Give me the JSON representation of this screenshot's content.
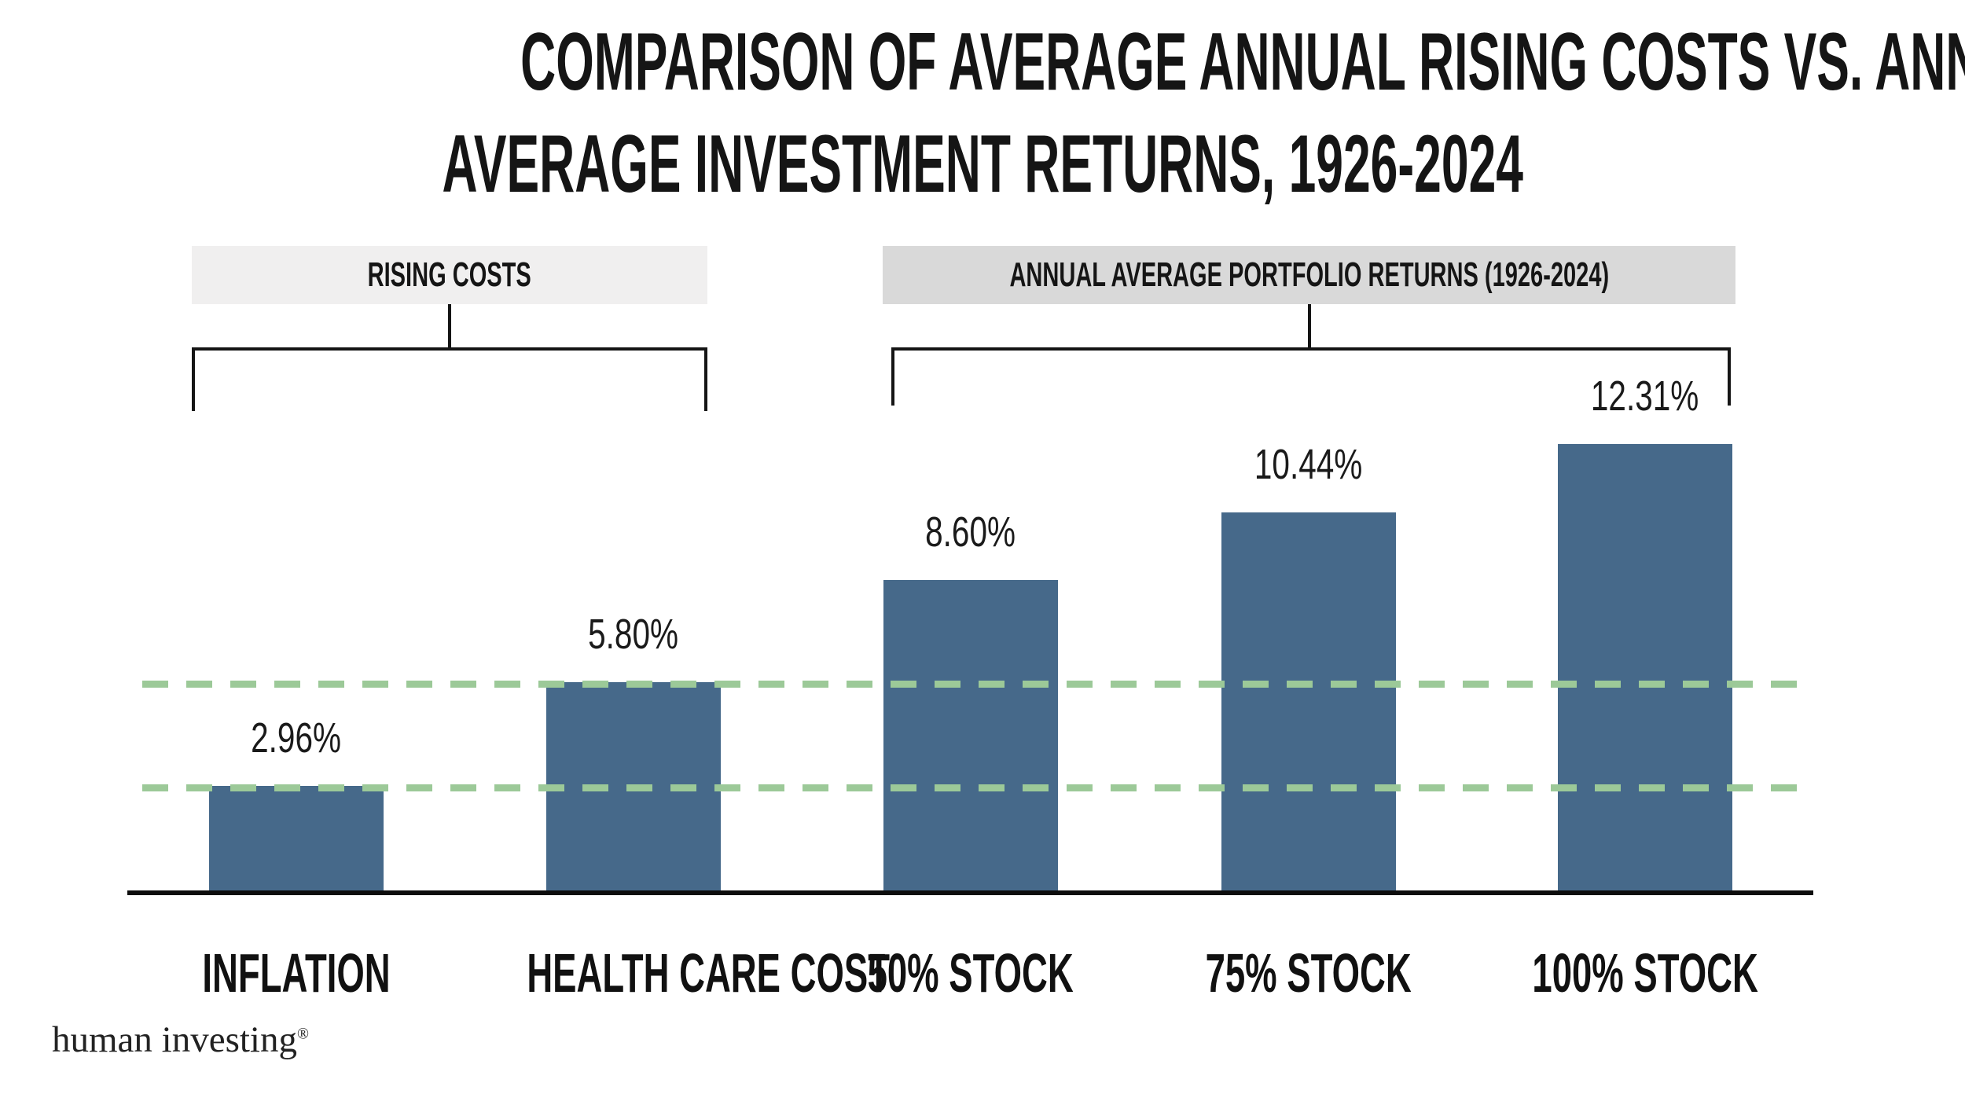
{
  "title": {
    "line1": "COMPARISON OF AVERAGE ANNUAL RISING COSTS VS. ANNUAL",
    "line2": "AVERAGE INVESTMENT RETURNS, 1926-2024"
  },
  "groups": [
    {
      "label": "RISING COSTS",
      "bg": "#F0EFEF"
    },
    {
      "label": "ANNUAL AVERAGE PORTFOLIO RETURNS (1926-2024)",
      "bg": "#D9D9D9"
    }
  ],
  "chart_data": {
    "type": "bar",
    "title": "COMPARISON OF AVERAGE ANNUAL RISING COSTS VS. ANNUAL AVERAGE INVESTMENT RETURNS, 1926-2024",
    "categories": [
      "INFLATION",
      "HEALTH CARE COST",
      "50% STOCK",
      "75% STOCK",
      "100% STOCK"
    ],
    "values": [
      2.96,
      5.8,
      8.6,
      10.44,
      12.31
    ],
    "value_labels": [
      "2.96%",
      "5.80%",
      "8.60%",
      "10.44%",
      "12.31%"
    ],
    "xlabel": "",
    "ylabel": "",
    "ylim": [
      0,
      13
    ],
    "grid": false,
    "legend": "none",
    "group_spans": [
      {
        "label": "RISING COSTS",
        "categories": [
          "INFLATION",
          "HEALTH CARE COST"
        ]
      },
      {
        "label": "ANNUAL AVERAGE PORTFOLIO RETURNS (1926-2024)",
        "categories": [
          "50% STOCK",
          "75% STOCK",
          "100% STOCK"
        ]
      }
    ],
    "reference_lines": [
      {
        "value": 2.96,
        "style": "dashed",
        "color": "#9CC998"
      },
      {
        "value": 5.8,
        "style": "dashed",
        "color": "#9CC998"
      }
    ],
    "bar_color": "#46698A"
  },
  "colors": {
    "bar": "#46698A",
    "dash_green": "#9CC998",
    "box_light": "#F0EFEF",
    "box_dark": "#D9D9D9",
    "text": "#1A1A1A"
  },
  "footer": {
    "logo_text": "human investing",
    "registered_mark": "®"
  }
}
